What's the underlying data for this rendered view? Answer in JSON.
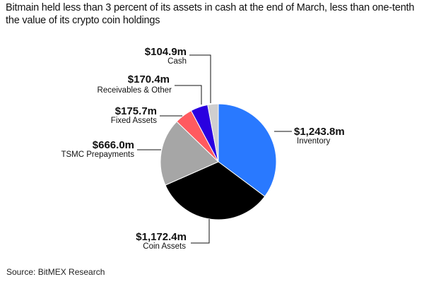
{
  "title": "Bitmain held less than 3 percent of its assets in cash at the end of March, less than one-tenth the value of its crypto coin holdings",
  "source": "Source: BitMEX Research",
  "chart_data": {
    "type": "pie",
    "title": "Bitmain held less than 3 percent of its assets in cash at the end of March, less than one-tenth the value of its crypto coin holdings",
    "unit": "$m",
    "slices": [
      {
        "name": "Inventory",
        "value": 1243.8,
        "value_label": "$1,243.8m",
        "color": "#2979ff"
      },
      {
        "name": "Coin Assets",
        "value": 1172.4,
        "value_label": "$1,172.4m",
        "color": "#000000"
      },
      {
        "name": "TSMC Prepayments",
        "value": 666.0,
        "value_label": "$666.0m",
        "color": "#a6a6a6"
      },
      {
        "name": "Fixed Assets",
        "value": 175.7,
        "value_label": "$175.7m",
        "color": "#ff5a5f"
      },
      {
        "name": "Receivables & Other",
        "value": 170.4,
        "value_label": "$170.4m",
        "color": "#2a00e0"
      },
      {
        "name": "Cash",
        "value": 104.9,
        "value_label": "$104.9m",
        "color": "#cfcfcf"
      }
    ]
  }
}
